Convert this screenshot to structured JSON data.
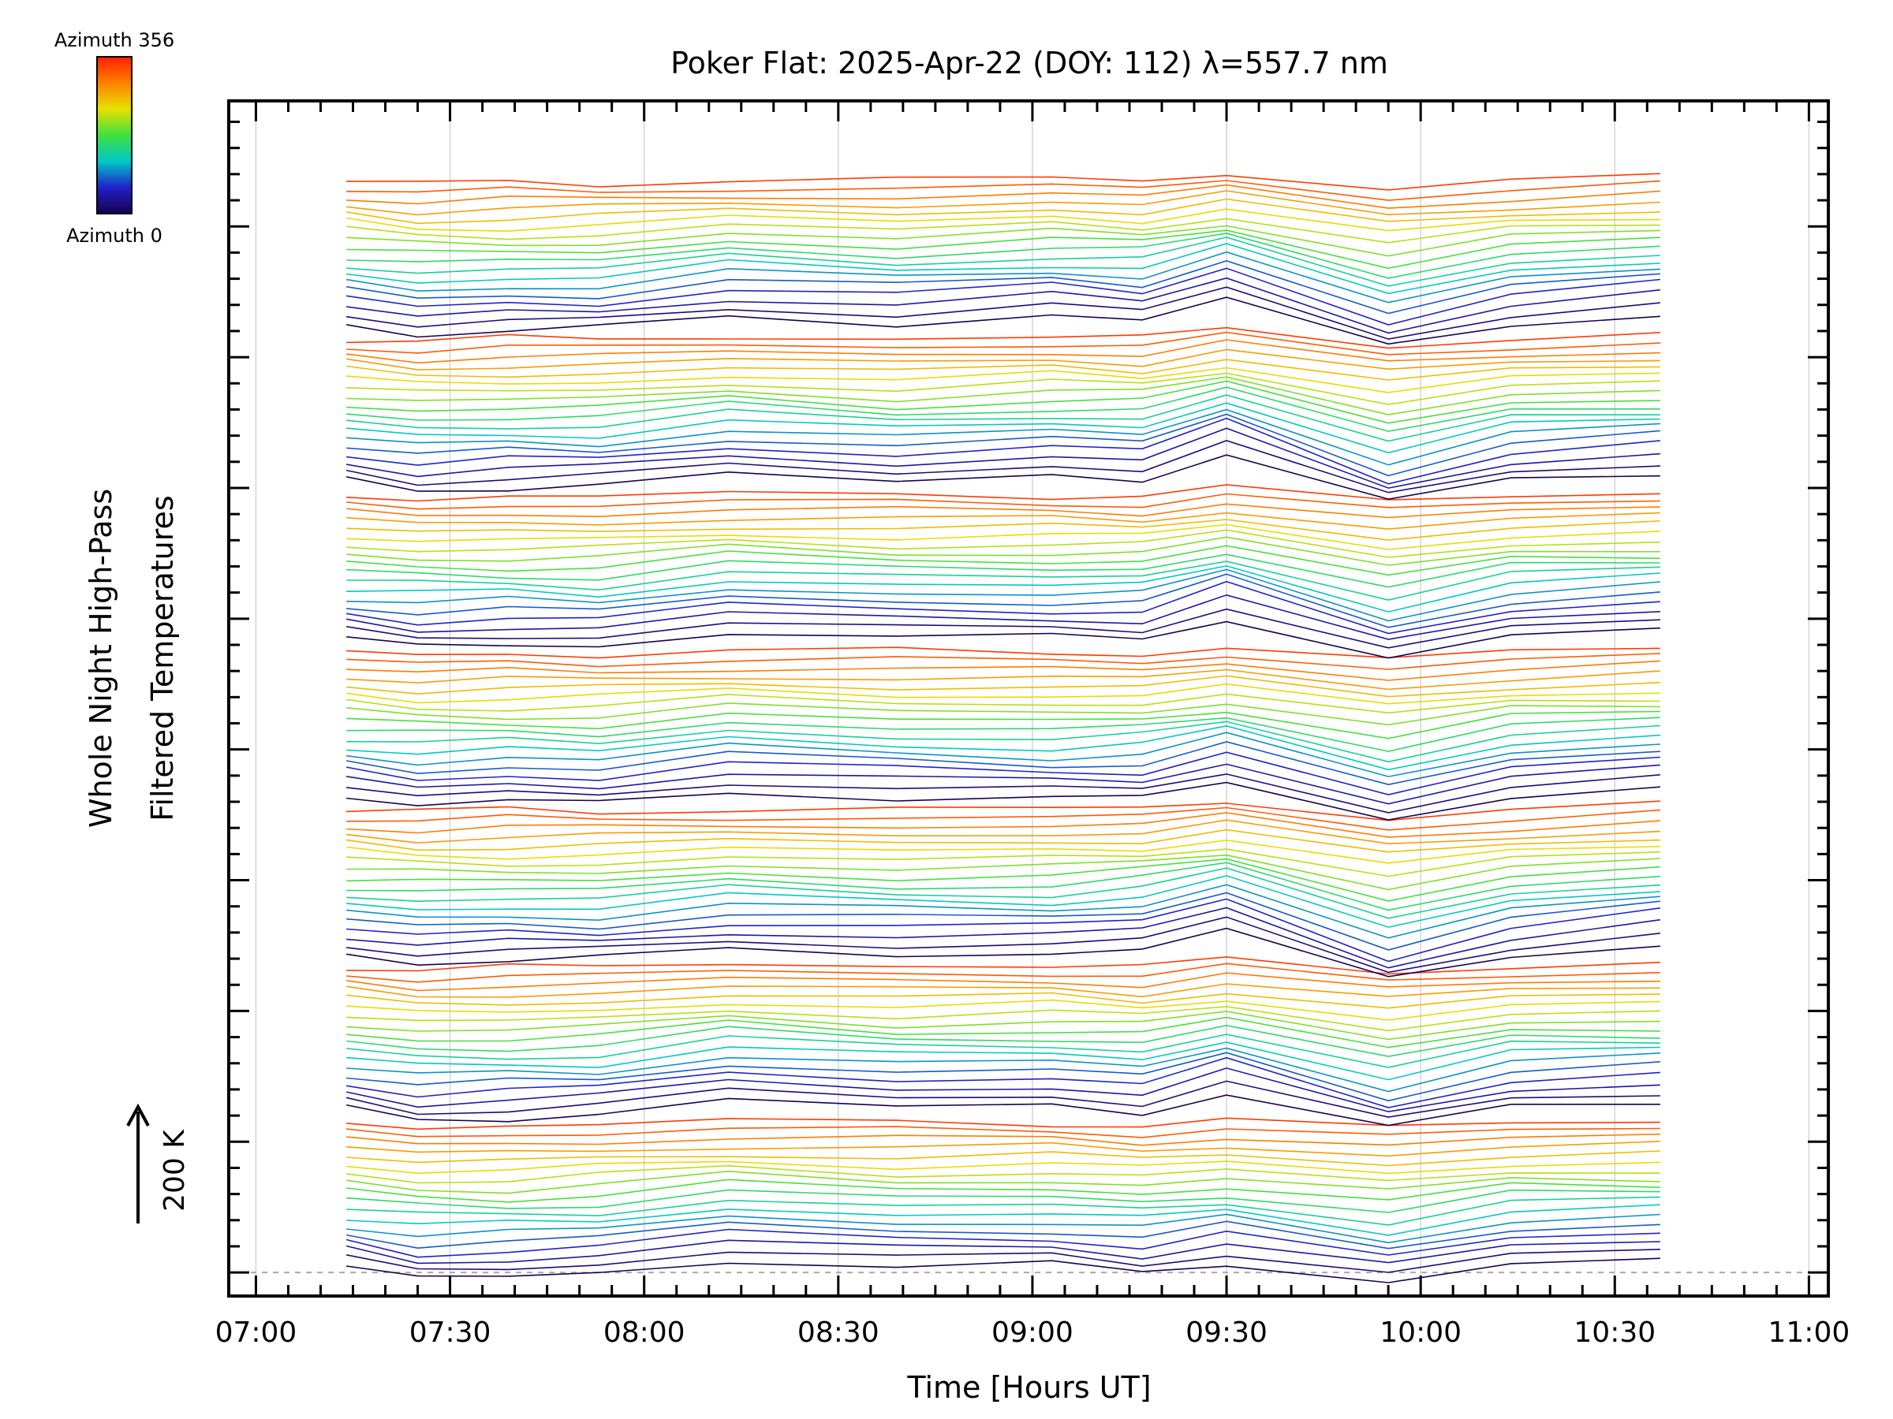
{
  "chart_data": {
    "type": "line",
    "title": "Poker Flat: 2025-Apr-22 (DOY: 112) λ=557.7 nm",
    "xlabel": "Time [Hours UT]",
    "ylabel_line1": "Whole Night High-Pass",
    "ylabel_line2": "Filtered Temperatures",
    "x_ticklabels": [
      "07:00",
      "07:30",
      "08:00",
      "08:30",
      "09:00",
      "09:30",
      "10:00",
      "10:30",
      "11:00"
    ],
    "x_range_hours": [
      6.93,
      11.05
    ],
    "x_ticks_hours": [
      7.0,
      7.5,
      8.0,
      8.5,
      9.0,
      9.5,
      10.0,
      10.5,
      11.0
    ],
    "x_minor_step_hours": 0.0833333,
    "colorbar": {
      "top_label": "Azimuth 356",
      "bottom_label": "Azimuth 0",
      "min": 0,
      "max": 356,
      "colors": [
        "#1a0050",
        "#2020c8",
        "#00c8c8",
        "#40e040",
        "#e8e000",
        "#ff8000",
        "#ff2000"
      ]
    },
    "scale_bar_label": "200 K",
    "grid": true,
    "baseline_dashed": true,
    "stack": {
      "n_groups": 7,
      "lines_per_group": 18,
      "azimuth_step": 20,
      "group_offset_units": 6.0,
      "line_offset_units": 0.333,
      "y_range_units": [
        -0.9,
        44.8
      ]
    },
    "series_times_hours": [
      7.233,
      7.417,
      7.65,
      7.883,
      8.217,
      8.65,
      9.05,
      9.283,
      9.5,
      9.917,
      10.233,
      10.617
    ],
    "group_base_profiles": [
      [
        0.2,
        -0.25,
        -0.2,
        0.0,
        0.6,
        0.25,
        0.3,
        0.05,
        0.45,
        -0.45,
        0.4,
        0.55
      ],
      [
        0.25,
        -0.15,
        -0.1,
        0.05,
        0.75,
        0.35,
        0.45,
        0.2,
        1.05,
        -0.65,
        0.45,
        0.6
      ],
      [
        0.15,
        -0.1,
        -0.05,
        -0.05,
        0.45,
        0.2,
        0.25,
        0.5,
        1.3,
        -1.0,
        0.2,
        0.75
      ],
      [
        0.2,
        -0.15,
        0.0,
        -0.1,
        0.55,
        0.2,
        0.1,
        0.2,
        0.9,
        -0.8,
        0.3,
        0.65
      ],
      [
        0.2,
        -0.05,
        0.0,
        -0.05,
        0.6,
        0.35,
        0.3,
        0.35,
        1.25,
        -0.65,
        0.4,
        0.7
      ],
      [
        0.3,
        -0.05,
        0.05,
        0.1,
        0.65,
        0.25,
        0.6,
        0.45,
        1.55,
        -0.75,
        0.45,
        0.7
      ],
      [
        0.3,
        -0.1,
        0.0,
        0.05,
        0.7,
        0.35,
        0.75,
        0.5,
        1.45,
        -0.7,
        0.4,
        0.8
      ]
    ],
    "group_base_values": [
      0.0,
      6.0,
      12.0,
      18.0,
      24.0,
      30.0,
      36.0
    ]
  }
}
